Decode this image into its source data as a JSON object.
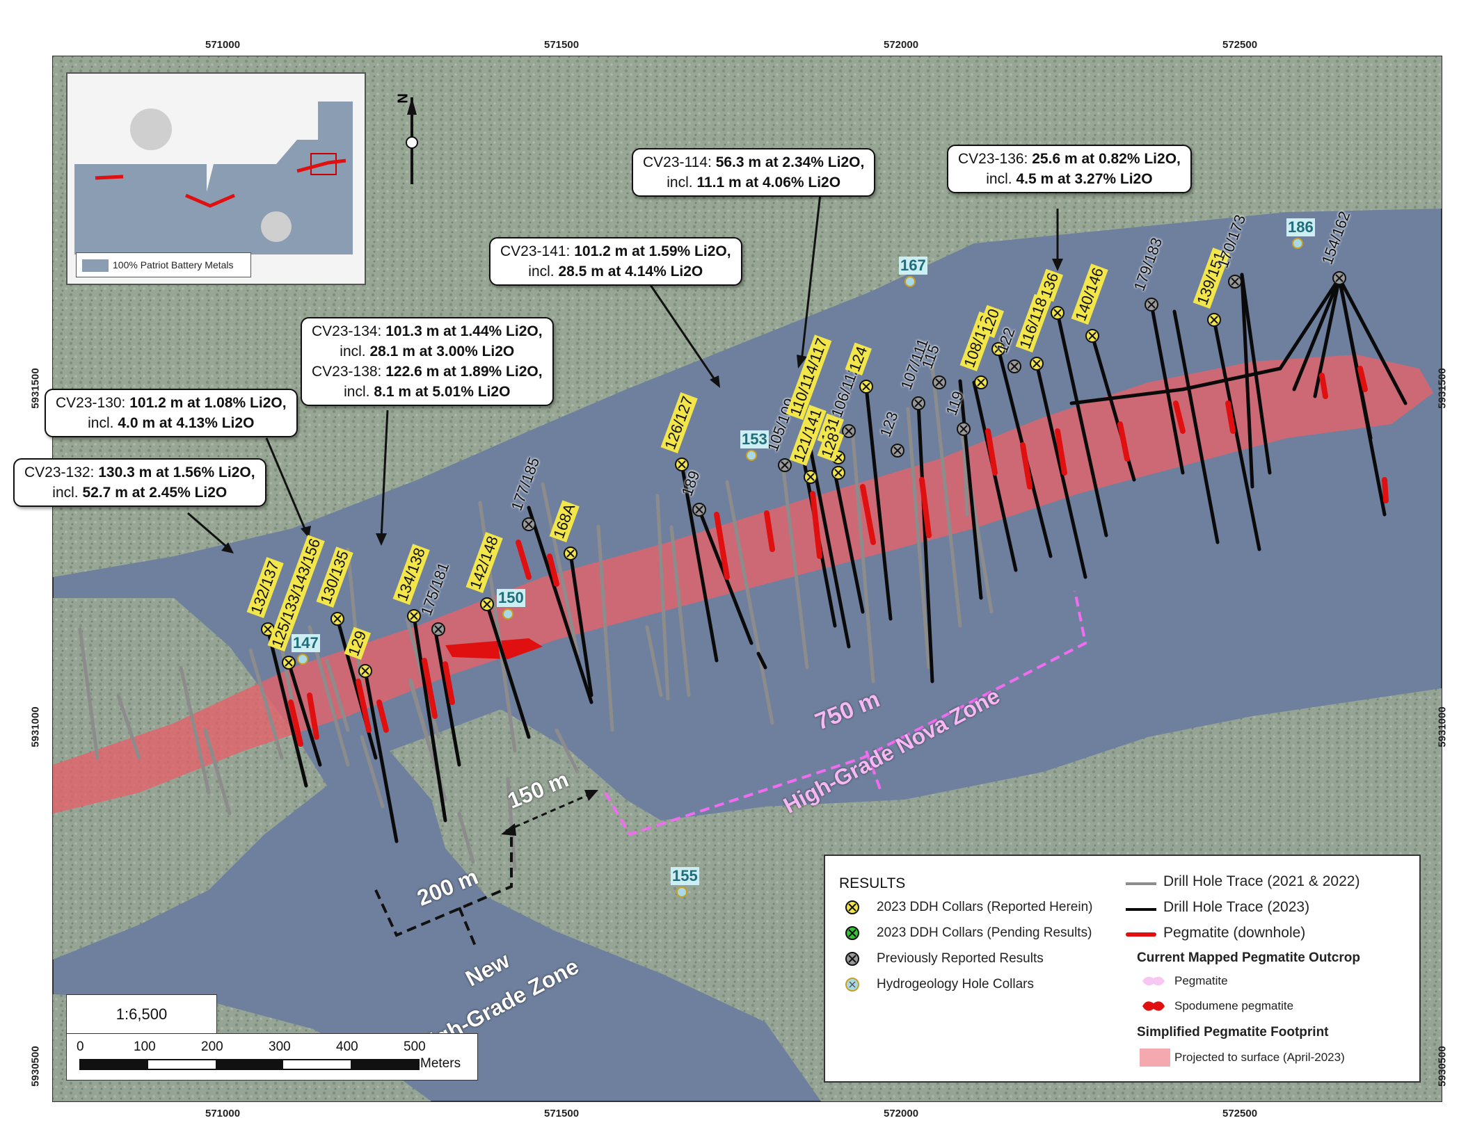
{
  "axes": {
    "x_ticks": [
      "571000",
      "571500",
      "572000",
      "572500"
    ],
    "y_ticks": [
      "5931500",
      "5931000",
      "5930500"
    ]
  },
  "inset": {
    "legend_label": "100% Patriot Battery Metals"
  },
  "north_label": "N",
  "callouts": [
    {
      "id": "cv23-114",
      "line1_hole": "CV23-114:",
      "line1_val": "56.3 m at 2.34% Li2O,",
      "line2_pre": "incl.",
      "line2_val": "11.1 m at 4.06% Li2O"
    },
    {
      "id": "cv23-136",
      "line1_hole": "CV23-136:",
      "line1_val": "25.6 m at 0.82% Li2O,",
      "line2_pre": "incl.",
      "line2_val": "4.5 m at 3.27% Li2O"
    },
    {
      "id": "cv23-141",
      "line1_hole": "CV23-141:",
      "line1_val": "101.2 m at 1.59% Li2O,",
      "line2_pre": "incl.",
      "line2_val": "28.5 m at 4.14% Li2O"
    },
    {
      "id": "cv23-134",
      "line1_hole": "CV23-134:",
      "line1_val": "101.3 m at 1.44% Li2O,",
      "line2_pre": "incl.",
      "line2_val": "28.1 m at 3.00% Li2O",
      "line3_hole": "CV23-138:",
      "line3_val": "122.6 m at 1.89% Li2O,",
      "line4_pre": "incl.",
      "line4_val": "8.1 m at 5.01% Li2O"
    },
    {
      "id": "cv23-130",
      "line1_hole": "CV23-130:",
      "line1_val": "101.2 m at 1.08% Li2O,",
      "line2_pre": "incl.",
      "line2_val": "4.0 m at 4.13% Li2O"
    },
    {
      "id": "cv23-132",
      "line1_hole": "CV23-132:",
      "line1_val": "130.3 m at 1.56% Li2O,",
      "line2_pre": "incl.",
      "line2_val": "52.7 m at 2.45% Li2O"
    }
  ],
  "hole_labels": [
    {
      "text": "132/137",
      "kind": "reported"
    },
    {
      "text": "130/135",
      "kind": "reported"
    },
    {
      "text": "134/138",
      "kind": "reported"
    },
    {
      "text": "175/181",
      "kind": "prev"
    },
    {
      "text": "142/148",
      "kind": "reported"
    },
    {
      "text": "177/185",
      "kind": "prev"
    },
    {
      "text": "168A",
      "kind": "reported"
    },
    {
      "text": "126/127",
      "kind": "reported"
    },
    {
      "text": "189",
      "kind": "prev"
    },
    {
      "text": "121/141",
      "kind": "reported"
    },
    {
      "text": "105/109",
      "kind": "prev"
    },
    {
      "text": "110/114/117",
      "kind": "reported"
    },
    {
      "text": "106/112",
      "kind": "prev"
    },
    {
      "text": "131",
      "kind": "reported"
    },
    {
      "text": "124",
      "kind": "reported"
    },
    {
      "text": "123",
      "kind": "prev"
    },
    {
      "text": "107/111",
      "kind": "prev"
    },
    {
      "text": "115",
      "kind": "prev"
    },
    {
      "text": "119",
      "kind": "prev"
    },
    {
      "text": "108/113",
      "kind": "reported"
    },
    {
      "text": "120",
      "kind": "reported"
    },
    {
      "text": "122",
      "kind": "prev"
    },
    {
      "text": "116/118",
      "kind": "reported"
    },
    {
      "text": "136",
      "kind": "reported"
    },
    {
      "text": "140/146",
      "kind": "reported"
    },
    {
      "text": "179/183",
      "kind": "prev"
    },
    {
      "text": "139/151",
      "kind": "reported"
    },
    {
      "text": "170/173",
      "kind": "prev"
    },
    {
      "text": "154/162",
      "kind": "prev"
    },
    {
      "text": "125/133/143/156",
      "kind": "reported"
    },
    {
      "text": "129",
      "kind": "reported"
    },
    {
      "text": "128",
      "kind": "reported"
    }
  ],
  "hydro_labels": [
    "147",
    "150",
    "153",
    "167",
    "186",
    "155"
  ],
  "distances": {
    "d750": "750 m",
    "d150": "150 m",
    "d200": "200 m"
  },
  "zones": {
    "nova": "High-Grade Nova Zone",
    "new_line1": "New",
    "new_line2": "High-Grade Zone"
  },
  "scale": {
    "ratio": "1:6,500",
    "ticks": [
      "0",
      "100",
      "200",
      "300",
      "400",
      "500"
    ],
    "unit": "Meters"
  },
  "legend": {
    "title": "RESULTS",
    "collar_reported": "2023 DDH Collars (Reported Herein)",
    "collar_pending": "2023 DDH Collars (Pending Results)",
    "collar_prev": "Previously Reported Results",
    "collar_hydro": "Hydrogeology Hole Collars",
    "trace_old": "Drill Hole Trace (2021 & 2022)",
    "trace_new": "Drill Hole Trace (2023)",
    "pegmatite_dh": "Pegmatite (downhole)",
    "outcrop_title": "Current Mapped Pegmatite Outcrop",
    "outcrop_peg": "Pegmatite",
    "outcrop_spod": "Spodumene pegmatite",
    "footprint_title": "Simplified Pegmatite Footprint",
    "footprint_item": "Projected to surface (April-2023)"
  },
  "colors": {
    "reported": "#f2e64a",
    "pending": "#35c235",
    "previous": "#9a9a9a",
    "hydro": "#a9d9e6",
    "footprint": "#e57f86",
    "pegmatite": "#e01010",
    "pink_dash": "#f06cf0",
    "water": "#6e7f9e",
    "land": "#9aa892"
  }
}
